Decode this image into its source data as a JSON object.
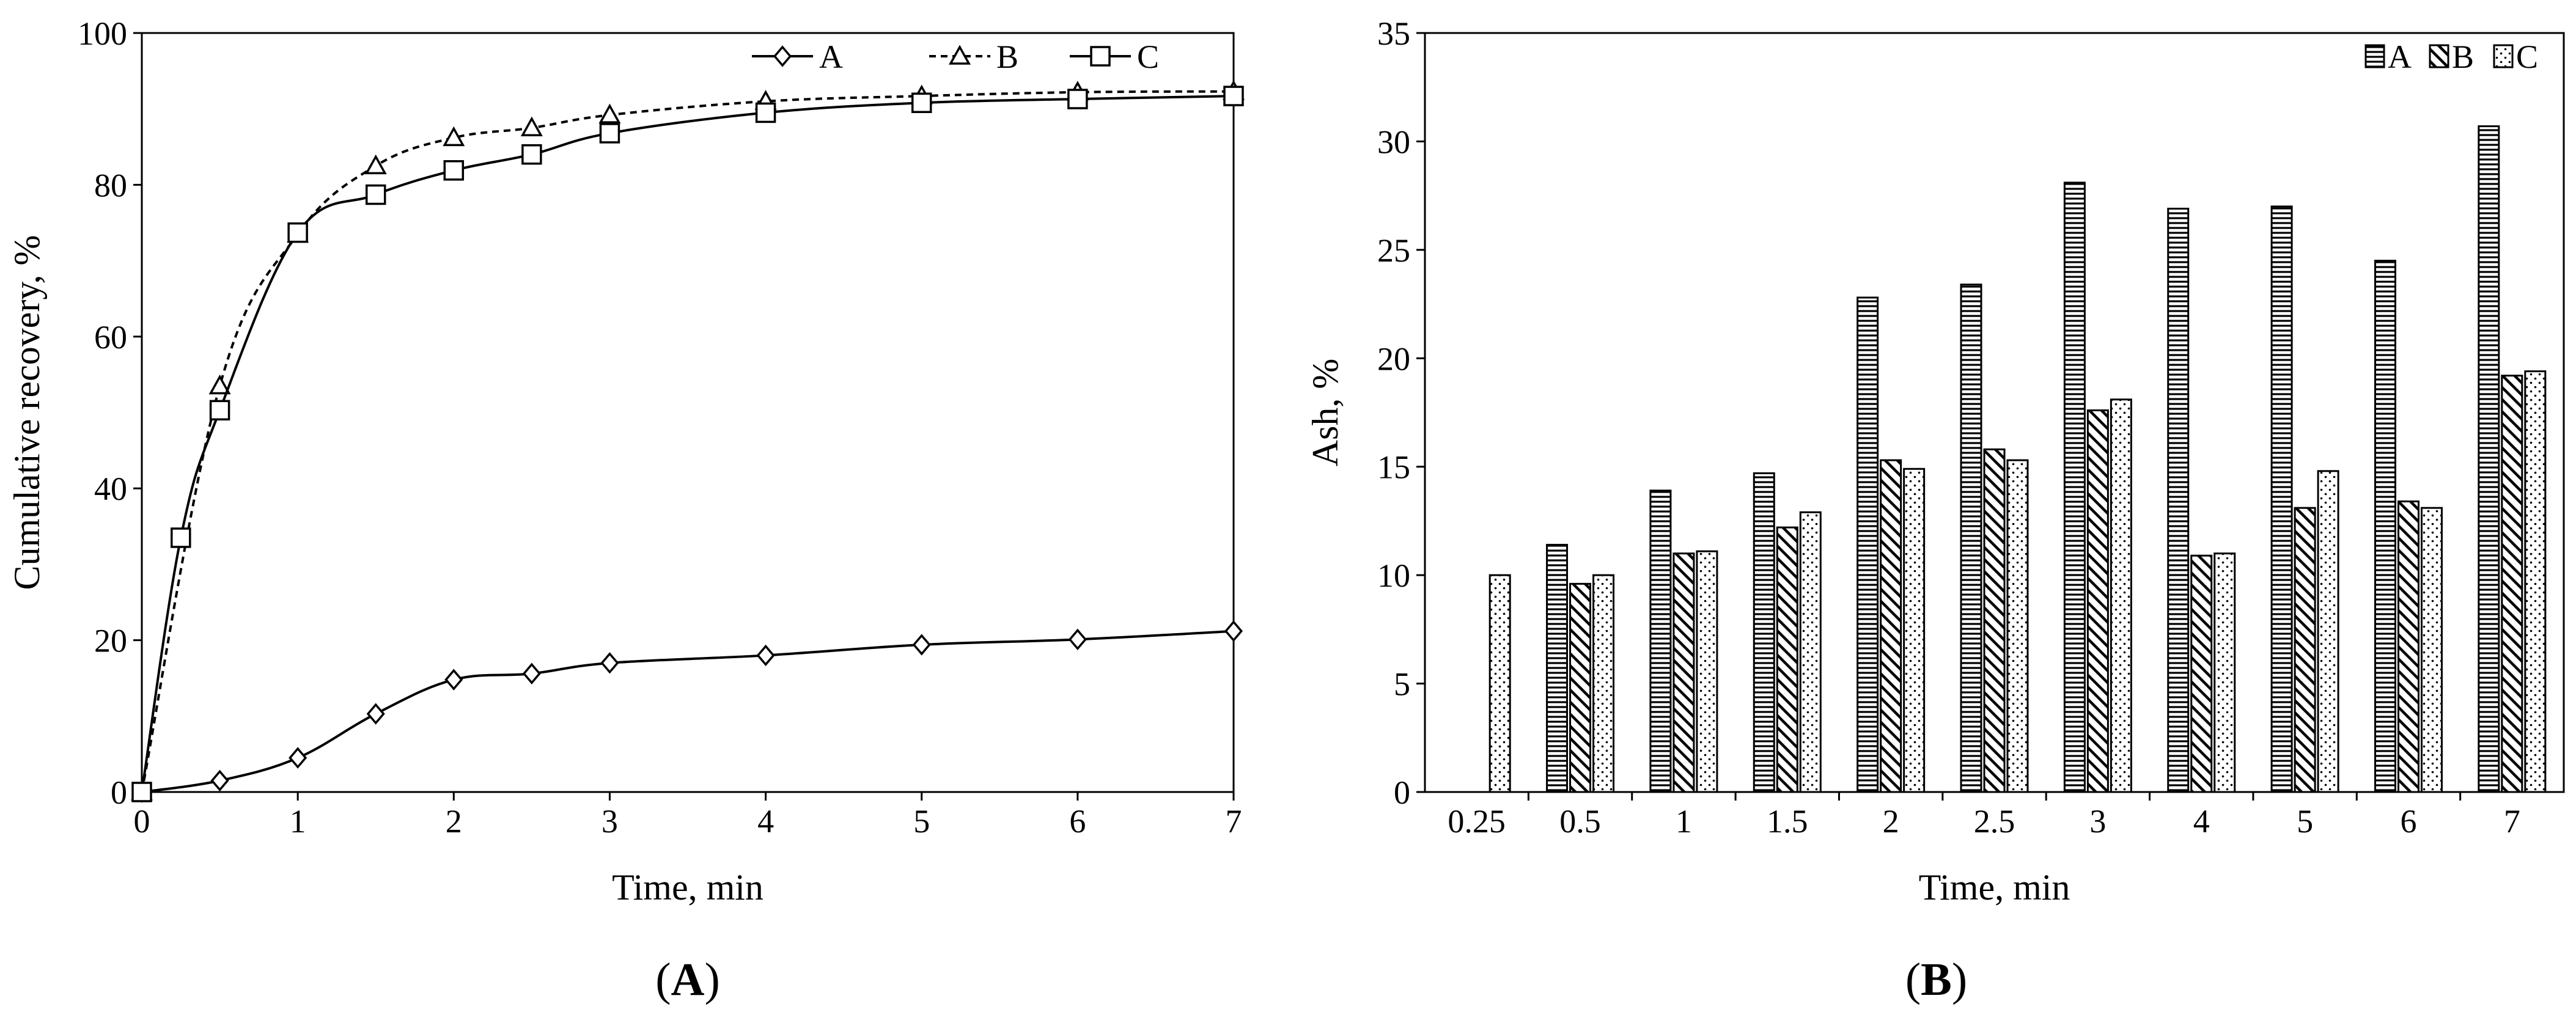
{
  "panels": [
    {
      "letter": "A"
    },
    {
      "letter": "B"
    }
  ],
  "chart_data": [
    {
      "type": "line",
      "xlabel": "Time, min",
      "ylabel": "Cumulative  recovery, %",
      "xlim": [
        0,
        7
      ],
      "ylim": [
        0,
        100
      ],
      "xticks": [
        0,
        1,
        2,
        3,
        4,
        5,
        6,
        7
      ],
      "yticks": [
        0,
        20,
        40,
        60,
        80,
        100
      ],
      "legend_position": "top-right",
      "series": [
        {
          "name": "A",
          "marker": "diamond",
          "dash": "solid",
          "x": [
            0,
            0.5,
            1,
            1.5,
            2,
            2.5,
            3,
            4,
            5,
            6,
            7
          ],
          "y": [
            0,
            1.5,
            4.5,
            10.3,
            14.8,
            15.6,
            17.0,
            18.0,
            19.4,
            20.1,
            21.2
          ]
        },
        {
          "name": "B",
          "marker": "triangle",
          "dash": "dashed",
          "x": [
            0,
            0.5,
            1,
            1.5,
            2,
            2.5,
            3,
            4,
            5,
            6,
            7
          ],
          "y": [
            0,
            53.5,
            73.5,
            82.5,
            86.2,
            87.5,
            89.2,
            91.0,
            91.7,
            92.2,
            92.3
          ]
        },
        {
          "name": "C",
          "marker": "square",
          "dash": "solid",
          "x": [
            0,
            0.25,
            0.5,
            1,
            1.5,
            2,
            2.5,
            3,
            4,
            5,
            6,
            7
          ],
          "y": [
            0,
            33.5,
            50.3,
            73.7,
            78.7,
            81.9,
            84.0,
            86.8,
            89.5,
            90.8,
            91.3,
            91.7
          ]
        }
      ]
    },
    {
      "type": "bar",
      "xlabel": "Time, min",
      "ylabel": "Ash, %",
      "ylim": [
        0,
        35
      ],
      "yticks": [
        0,
        5,
        10,
        15,
        20,
        25,
        30,
        35
      ],
      "categories": [
        "0.25",
        "0.5",
        "1",
        "1.5",
        "2",
        "2.5",
        "3",
        "4",
        "5",
        "6",
        "7"
      ],
      "legend_position": "top-right",
      "series": [
        {
          "name": "A",
          "pattern": "horizontal-lines",
          "values": [
            null,
            11.4,
            13.9,
            14.7,
            22.8,
            23.4,
            28.1,
            26.9,
            27.0,
            24.5,
            30.7
          ]
        },
        {
          "name": "B",
          "pattern": "diagonal-lines",
          "values": [
            null,
            9.6,
            11.0,
            12.2,
            15.3,
            15.8,
            17.6,
            10.9,
            13.1,
            13.4,
            19.2
          ]
        },
        {
          "name": "C",
          "pattern": "dots",
          "values": [
            10.0,
            10.0,
            11.1,
            12.9,
            14.9,
            15.3,
            18.1,
            11.0,
            14.8,
            13.1,
            19.4
          ]
        }
      ]
    }
  ]
}
